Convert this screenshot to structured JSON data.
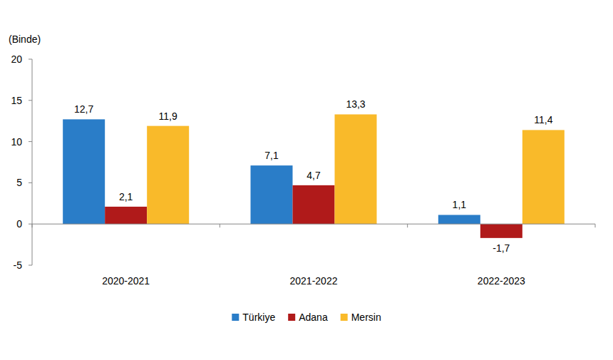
{
  "chart_data": {
    "type": "bar",
    "y_label": "(Binde)",
    "categories": [
      "2020-2021",
      "2021-2022",
      "2022-2023"
    ],
    "series": [
      {
        "name": "Türkiye",
        "color": "#2a7dc8",
        "values": [
          12.7,
          7.1,
          1.1
        ],
        "value_labels": [
          "12,7",
          "7,1",
          "1,1"
        ]
      },
      {
        "name": "Adana",
        "color": "#b01a1a",
        "values": [
          2.1,
          4.7,
          -1.7
        ],
        "value_labels": [
          "2,1",
          "4,7",
          "-1,7"
        ]
      },
      {
        "name": "Mersin",
        "color": "#f9ba2a",
        "values": [
          11.9,
          13.3,
          11.4
        ],
        "value_labels": [
          "11,9",
          "13,3",
          "11,4"
        ]
      }
    ],
    "ylim": [
      -5,
      20
    ],
    "yticks": [
      -5,
      0,
      5,
      10,
      15,
      20
    ],
    "grid": false,
    "legend": "bottom",
    "data_labels": true
  }
}
